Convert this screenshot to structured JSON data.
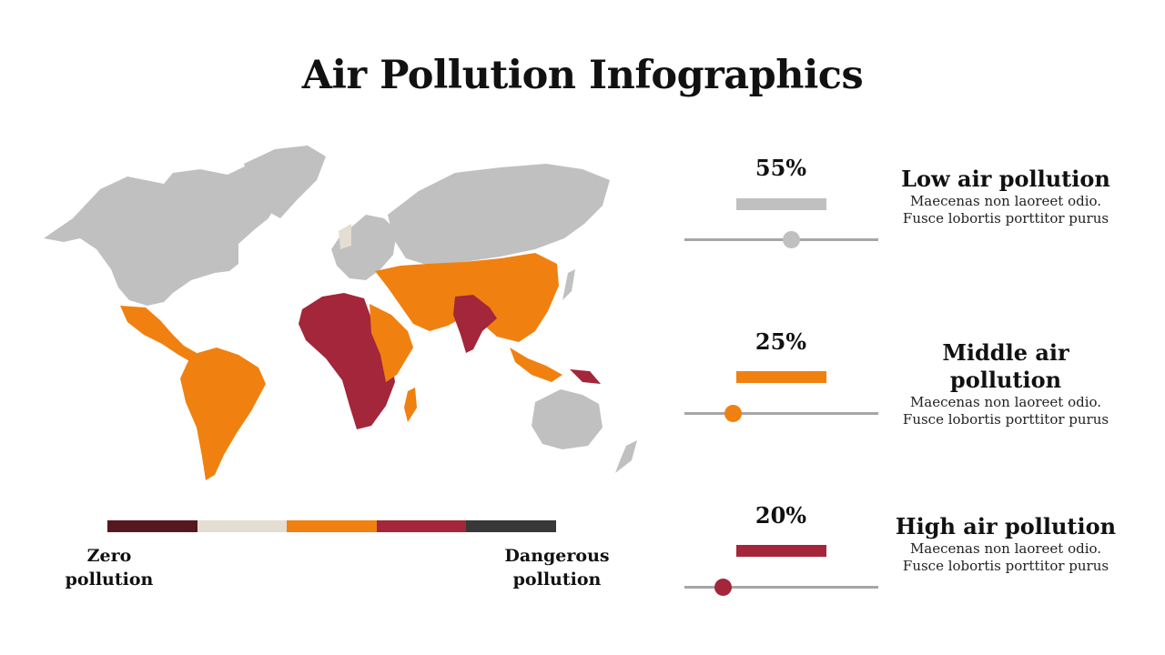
{
  "title": "Air Pollution Infographics",
  "colors": {
    "land": "#c0c0c0",
    "orange": "#f08110",
    "red": "#a3263a",
    "beige": "#e4ddd1",
    "track": "#a6a6a6"
  },
  "scale": {
    "segments": [
      "#561820",
      "#e4ddd1",
      "#f08110",
      "#a3263a",
      "#383838"
    ],
    "left_label": "Zero pollution",
    "right_label": "Dangerous pollution"
  },
  "levels": [
    {
      "percent": "55%",
      "fraction": 0.55,
      "color": "#c0c0c0",
      "title": "Low air pollution",
      "line1": "Maecenas non laoreet odio.",
      "line2": "Fusce lobortis porttitor purus"
    },
    {
      "percent": "25%",
      "fraction": 0.25,
      "color": "#f08110",
      "title": "Middle air pollution",
      "line1": "Maecenas non laoreet odio.",
      "line2": "Fusce lobortis porttitor purus"
    },
    {
      "percent": "20%",
      "fraction": 0.2,
      "color": "#a3263a",
      "title": "High air pollution",
      "line1": "Maecenas non laoreet odio.",
      "line2": "Fusce lobortis porttitor purus"
    }
  ]
}
